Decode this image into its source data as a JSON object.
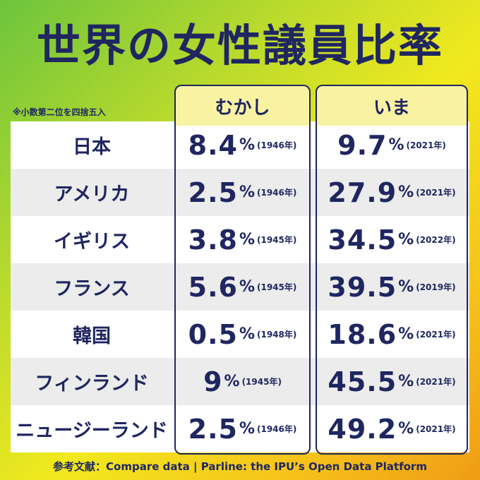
{
  "title": "世界の女性議員比率",
  "note": "※小数第二位を四捨五入",
  "footer": "参考文献：Compare data | Parline: the IPU’s Open Data Platform",
  "colors": {
    "navy": "#1f2660",
    "header_yellow": "#f9f2a3",
    "row_alt": "#ececec"
  },
  "chart_data": {
    "type": "table",
    "title": "世界の女性議員比率",
    "columns": [
      "むかし",
      "いま"
    ],
    "unit": "%",
    "rows": [
      {
        "country": "日本",
        "past": {
          "value": "8.4",
          "year": "(1946年)"
        },
        "now": {
          "value": "9.7",
          "year": "(2021年)"
        }
      },
      {
        "country": "アメリカ",
        "past": {
          "value": "2.5",
          "year": "(1946年)"
        },
        "now": {
          "value": "27.9",
          "year": "(2021年)"
        }
      },
      {
        "country": "イギリス",
        "past": {
          "value": "3.8",
          "year": "(1945年)"
        },
        "now": {
          "value": "34.5",
          "year": "(2022年)"
        }
      },
      {
        "country": "フランス",
        "past": {
          "value": "5.6",
          "year": "(1945年)"
        },
        "now": {
          "value": "39.5",
          "year": "(2019年)"
        }
      },
      {
        "country": "韓国",
        "past": {
          "value": "0.5",
          "year": "(1948年)"
        },
        "now": {
          "value": "18.6",
          "year": "(2021年)"
        }
      },
      {
        "country": "フィンランド",
        "past": {
          "value": "9",
          "year": "(1945年)"
        },
        "now": {
          "value": "45.5",
          "year": "(2021年)"
        }
      },
      {
        "country": "ニュージーランド",
        "past": {
          "value": "2.5",
          "year": "(1946年)"
        },
        "now": {
          "value": "49.2",
          "year": "(2021年)"
        }
      }
    ]
  }
}
